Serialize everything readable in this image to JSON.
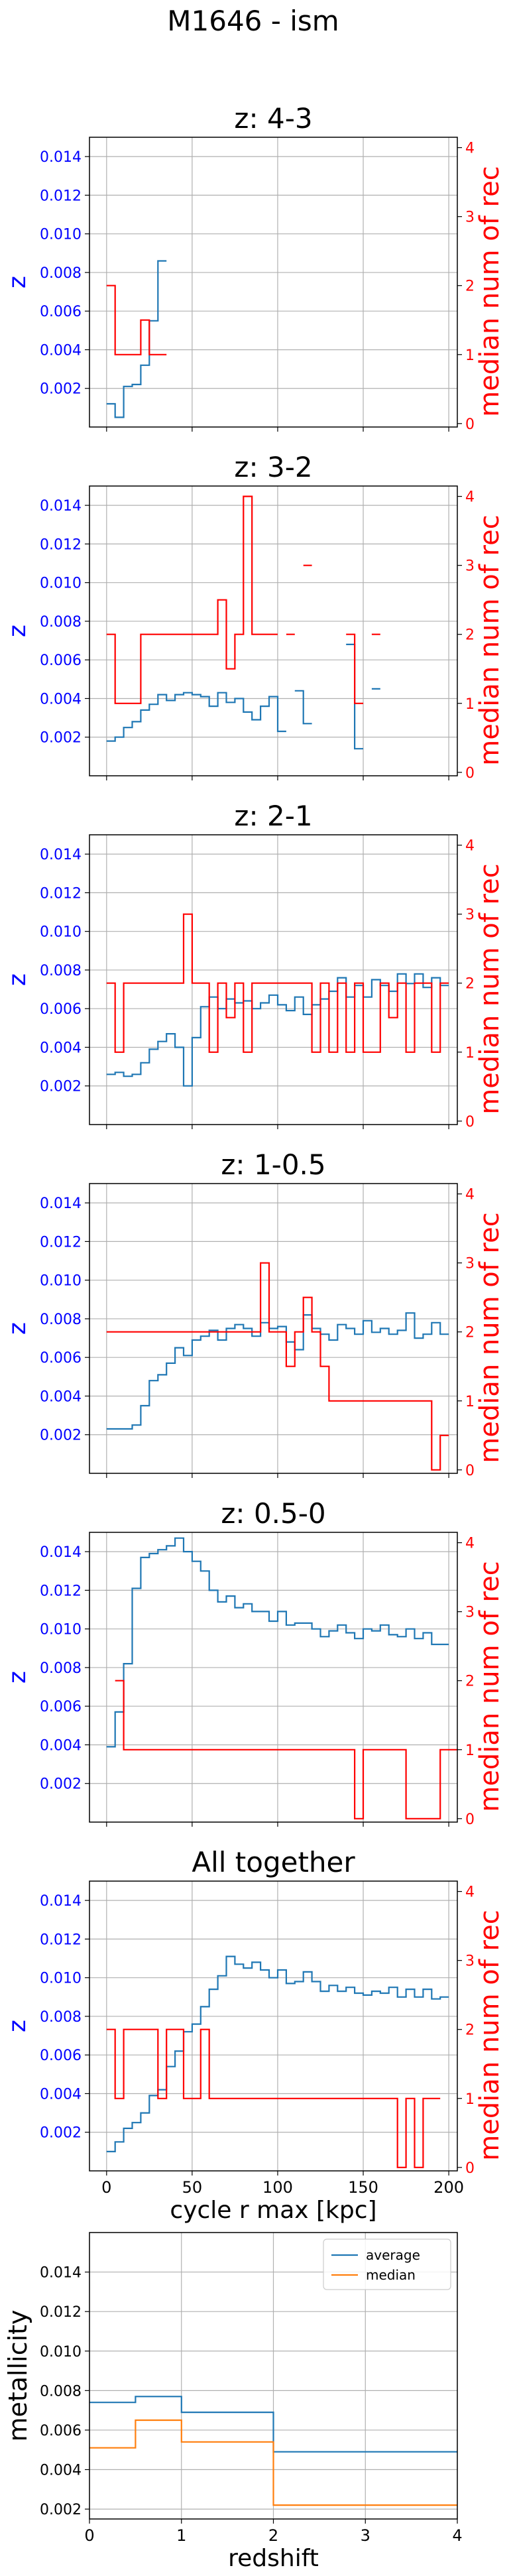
{
  "figure": {
    "title": "M1646 - ism"
  },
  "colors": {
    "z_axis": "#0000ff",
    "rec_axis": "#ff0000",
    "z_line": "#1f77b4",
    "rec_line": "#ff0000",
    "median_line": "#ff7f0e",
    "grid": "#b0b0b0"
  },
  "chart_data": [
    {
      "type": "line",
      "title": "z: 4-3",
      "ylabel": "z",
      "ylabel_right": "median num of rec",
      "xlim": [
        -10,
        205
      ],
      "ylim": [
        0,
        0.015
      ],
      "ylim_right": [
        -0.05,
        4.15
      ],
      "yticks": [
        "0.002",
        "0.004",
        "0.006",
        "0.008",
        "0.010",
        "0.012",
        "0.014"
      ],
      "yticks_right": [
        "0",
        "1",
        "2",
        "3",
        "4"
      ],
      "xticks": [],
      "grid": true,
      "series": [
        {
          "axis": "left",
          "style": "step",
          "x": [
            0,
            5,
            10,
            15,
            20,
            25,
            30
          ],
          "y": [
            0.0012,
            0.0005,
            0.0021,
            0.0022,
            0.0032,
            0.0055,
            0.0086
          ]
        },
        {
          "axis": "right",
          "style": "step",
          "x": [
            0,
            5,
            10,
            15,
            20,
            25,
            30
          ],
          "y": [
            2,
            1,
            1,
            1,
            1.5,
            1,
            1
          ]
        }
      ]
    },
    {
      "type": "line",
      "title": "z: 3-2",
      "ylabel": "z",
      "ylabel_right": "median num of rec",
      "xlim": [
        -10,
        205
      ],
      "ylim": [
        0,
        0.015
      ],
      "ylim_right": [
        -0.05,
        4.15
      ],
      "yticks": [
        "0.002",
        "0.004",
        "0.006",
        "0.008",
        "0.010",
        "0.012",
        "0.014"
      ],
      "yticks_right": [
        "0",
        "1",
        "2",
        "3",
        "4"
      ],
      "xticks": [],
      "grid": true,
      "series": [
        {
          "axis": "left",
          "style": "step",
          "x": [
            0,
            5,
            10,
            15,
            20,
            25,
            30,
            35,
            40,
            45,
            50,
            55,
            60,
            65,
            70,
            75,
            80,
            85,
            90,
            95,
            100,
            105,
            110,
            115,
            120,
            125,
            130,
            135,
            140,
            145,
            150,
            155,
            160,
            165,
            170,
            175,
            180,
            185,
            190,
            195
          ],
          "y": [
            0.0018,
            0.002,
            0.0025,
            0.0028,
            0.0034,
            0.0037,
            0.0042,
            0.0039,
            0.0042,
            0.0043,
            0.0042,
            0.0041,
            0.0036,
            0.0043,
            0.0038,
            0.004,
            0.0033,
            0.0029,
            0.0036,
            0.0041,
            0.0023,
            null,
            0.0044,
            0.0027,
            null,
            null,
            null,
            null,
            0.0068,
            0.0014,
            null,
            0.0045,
            null,
            null,
            null,
            null,
            null,
            null,
            null,
            null
          ]
        },
        {
          "axis": "right",
          "style": "step",
          "x": [
            0,
            5,
            10,
            15,
            20,
            25,
            30,
            35,
            40,
            45,
            50,
            55,
            60,
            65,
            70,
            75,
            80,
            85,
            90,
            95,
            100,
            105,
            110,
            115,
            120,
            125,
            130,
            135,
            140,
            145,
            150,
            155,
            160,
            165,
            170,
            175,
            180,
            185,
            190,
            195
          ],
          "y": [
            2,
            1,
            1,
            1,
            2,
            2,
            2,
            2,
            2,
            2,
            2,
            2,
            2,
            2.5,
            1.5,
            2,
            4,
            2,
            2,
            2,
            null,
            2,
            null,
            3,
            null,
            null,
            null,
            null,
            2,
            1,
            null,
            2,
            null,
            null,
            null,
            null,
            null,
            null,
            null,
            null
          ]
        }
      ]
    },
    {
      "type": "line",
      "title": "z: 2-1",
      "ylabel": "z",
      "ylabel_right": "median num of rec",
      "xlim": [
        -10,
        205
      ],
      "ylim": [
        0,
        0.015
      ],
      "ylim_right": [
        -0.05,
        4.15
      ],
      "yticks": [
        "0.002",
        "0.004",
        "0.006",
        "0.008",
        "0.010",
        "0.012",
        "0.014"
      ],
      "yticks_right": [
        "0",
        "1",
        "2",
        "3",
        "4"
      ],
      "xticks": [],
      "grid": true,
      "series": [
        {
          "axis": "left",
          "style": "step",
          "x": [
            0,
            5,
            10,
            15,
            20,
            25,
            30,
            35,
            40,
            45,
            50,
            55,
            60,
            65,
            70,
            75,
            80,
            85,
            90,
            95,
            100,
            105,
            110,
            115,
            120,
            125,
            130,
            135,
            140,
            145,
            150,
            155,
            160,
            165,
            170,
            175,
            180,
            185,
            190,
            195
          ],
          "y": [
            0.0026,
            0.0027,
            0.0025,
            0.0026,
            0.0032,
            0.0039,
            0.0043,
            0.0047,
            0.004,
            0.002,
            0.0045,
            0.0061,
            0.0066,
            0.006,
            0.0065,
            0.0063,
            0.0064,
            0.006,
            0.0063,
            0.0067,
            0.0062,
            0.0059,
            0.0066,
            0.0057,
            0.0062,
            0.0065,
            0.0069,
            0.0076,
            0.0066,
            0.0072,
            0.0066,
            0.0075,
            0.0072,
            0.0069,
            0.0078,
            0.0073,
            0.0078,
            0.0071,
            0.0076,
            0.0072
          ]
        },
        {
          "axis": "right",
          "style": "step",
          "x": [
            0,
            5,
            10,
            15,
            20,
            25,
            30,
            35,
            40,
            45,
            50,
            55,
            60,
            65,
            70,
            75,
            80,
            85,
            90,
            95,
            100,
            105,
            110,
            115,
            120,
            125,
            130,
            135,
            140,
            145,
            150,
            155,
            160,
            165,
            170,
            175,
            180,
            185,
            190,
            195
          ],
          "y": [
            2,
            1,
            2,
            2,
            2,
            2,
            2,
            2,
            2,
            3,
            2,
            2,
            1,
            2,
            1.5,
            2,
            1,
            2,
            2,
            2,
            2,
            2,
            2,
            2,
            1,
            2,
            1,
            2,
            1,
            2,
            1,
            1,
            2,
            1.5,
            2,
            1,
            2,
            2,
            1,
            2
          ]
        }
      ]
    },
    {
      "type": "line",
      "title": "z: 1-0.5",
      "ylabel": "z",
      "ylabel_right": "median num of rec",
      "xlim": [
        -10,
        205
      ],
      "ylim": [
        0,
        0.015
      ],
      "ylim_right": [
        -0.05,
        4.15
      ],
      "yticks": [
        "0.002",
        "0.004",
        "0.006",
        "0.008",
        "0.010",
        "0.012",
        "0.014"
      ],
      "yticks_right": [
        "0",
        "1",
        "2",
        "3",
        "4"
      ],
      "xticks": [],
      "grid": true,
      "series": [
        {
          "axis": "left",
          "style": "step",
          "x": [
            0,
            5,
            10,
            15,
            20,
            25,
            30,
            35,
            40,
            45,
            50,
            55,
            60,
            65,
            70,
            75,
            80,
            85,
            90,
            95,
            100,
            105,
            110,
            115,
            120,
            125,
            130,
            135,
            140,
            145,
            150,
            155,
            160,
            165,
            170,
            175,
            180,
            185,
            190,
            195
          ],
          "y": [
            0.0023,
            0.0023,
            0.0023,
            0.0025,
            0.0035,
            0.0048,
            0.0051,
            0.0057,
            0.0065,
            0.0061,
            0.0069,
            0.0071,
            0.0074,
            0.0069,
            0.0075,
            0.0077,
            0.0075,
            0.0071,
            0.0078,
            0.0075,
            0.0076,
            0.0068,
            0.0064,
            0.0082,
            0.0075,
            0.0072,
            0.0069,
            0.0077,
            0.0075,
            0.0072,
            0.0079,
            0.0073,
            0.0075,
            0.0072,
            0.0074,
            0.0083,
            0.007,
            0.0072,
            0.0078,
            0.0072
          ]
        },
        {
          "axis": "right",
          "style": "step",
          "x": [
            0,
            85,
            90,
            95,
            100,
            105,
            110,
            115,
            120,
            125,
            130,
            135,
            140,
            145,
            150,
            155,
            160,
            165,
            170,
            175,
            180,
            185,
            190,
            195
          ],
          "y": [
            2,
            2,
            3,
            2,
            2,
            1.5,
            2,
            2.5,
            2,
            1.5,
            1,
            1,
            1,
            1,
            1,
            1,
            1,
            1,
            1,
            1,
            1,
            1,
            0,
            0.5
          ]
        }
      ]
    },
    {
      "type": "line",
      "title": "z: 0.5-0",
      "ylabel": "z",
      "ylabel_right": "median num of rec",
      "xlim": [
        -10,
        205
      ],
      "ylim": [
        0,
        0.015
      ],
      "ylim_right": [
        -0.05,
        4.15
      ],
      "yticks": [
        "0.002",
        "0.004",
        "0.006",
        "0.008",
        "0.010",
        "0.012",
        "0.014"
      ],
      "yticks_right": [
        "0",
        "1",
        "2",
        "3",
        "4"
      ],
      "xticks": [],
      "grid": true,
      "series": [
        {
          "axis": "left",
          "style": "step",
          "x": [
            0,
            5,
            10,
            15,
            20,
            25,
            30,
            35,
            40,
            45,
            50,
            55,
            60,
            65,
            70,
            75,
            80,
            85,
            90,
            95,
            100,
            105,
            110,
            115,
            120,
            125,
            130,
            135,
            140,
            145,
            150,
            155,
            160,
            165,
            170,
            175,
            180,
            185,
            190,
            195
          ],
          "y": [
            0.0039,
            0.0057,
            0.0082,
            0.0121,
            0.0137,
            0.0139,
            0.0141,
            0.0143,
            0.0147,
            0.014,
            0.0135,
            0.013,
            0.012,
            0.0114,
            0.0117,
            0.0111,
            0.0113,
            0.0109,
            0.0109,
            0.0104,
            0.0109,
            0.0102,
            0.0103,
            0.0103,
            0.01,
            0.0096,
            0.0099,
            0.0102,
            0.0098,
            0.0095,
            0.01,
            0.0099,
            0.0102,
            0.0097,
            0.0096,
            0.01,
            0.0095,
            0.0098,
            0.0092,
            0.0092
          ]
        },
        {
          "axis": "right",
          "style": "step",
          "x": [
            5,
            10,
            140,
            145,
            150,
            155,
            160,
            165,
            170,
            175,
            180,
            185,
            190,
            195,
            200
          ],
          "y": [
            2,
            1,
            1,
            0,
            1,
            1,
            1,
            1,
            1,
            0,
            0,
            0,
            0,
            1,
            1
          ]
        }
      ]
    },
    {
      "type": "line",
      "title": "All together",
      "ylabel": "z",
      "ylabel_right": "median num of rec",
      "xlabel": "cycle r max [kpc]",
      "xlim": [
        -10,
        205
      ],
      "ylim": [
        0,
        0.015
      ],
      "ylim_right": [
        -0.05,
        4.15
      ],
      "yticks": [
        "0.002",
        "0.004",
        "0.006",
        "0.008",
        "0.010",
        "0.012",
        "0.014"
      ],
      "yticks_right": [
        "0",
        "1",
        "2",
        "3",
        "4"
      ],
      "xticks": [
        "0",
        "50",
        "100",
        "150",
        "200"
      ],
      "grid": true,
      "series": [
        {
          "axis": "left",
          "style": "step",
          "x": [
            0,
            5,
            10,
            15,
            20,
            25,
            30,
            35,
            40,
            45,
            50,
            55,
            60,
            65,
            70,
            75,
            80,
            85,
            90,
            95,
            100,
            105,
            110,
            115,
            120,
            125,
            130,
            135,
            140,
            145,
            150,
            155,
            160,
            165,
            170,
            175,
            180,
            185,
            190,
            195
          ],
          "y": [
            0.001,
            0.0015,
            0.0022,
            0.0025,
            0.003,
            0.0039,
            0.0042,
            0.0054,
            0.0062,
            0.0072,
            0.0076,
            0.0085,
            0.0094,
            0.0101,
            0.0111,
            0.0107,
            0.0105,
            0.0108,
            0.0104,
            0.01,
            0.0104,
            0.0097,
            0.0098,
            0.0103,
            0.0098,
            0.0093,
            0.0096,
            0.0093,
            0.0095,
            0.0092,
            0.0091,
            0.0093,
            0.0092,
            0.0095,
            0.009,
            0.0094,
            0.009,
            0.0094,
            0.0089,
            0.009
          ]
        },
        {
          "axis": "right",
          "style": "step",
          "x": [
            0,
            5,
            10,
            15,
            20,
            25,
            30,
            35,
            40,
            45,
            50,
            55,
            60,
            140,
            145,
            150,
            155,
            160,
            165,
            170,
            175,
            180,
            185,
            190
          ],
          "y": [
            2,
            1,
            2,
            2,
            2,
            2,
            1,
            2,
            2,
            1,
            1,
            2,
            1,
            1,
            1,
            1,
            1,
            1,
            1,
            0,
            1,
            0,
            1,
            1
          ]
        }
      ]
    },
    {
      "type": "line",
      "title": "",
      "ylabel": "metallicity",
      "xlabel": "redshift",
      "xlim": [
        0,
        4
      ],
      "ylim": [
        0.0015,
        0.016
      ],
      "yticks": [
        "0.002",
        "0.004",
        "0.006",
        "0.008",
        "0.010",
        "0.012",
        "0.014"
      ],
      "xticks": [
        "0",
        "1",
        "2",
        "3",
        "4"
      ],
      "grid": true,
      "legend": {
        "position": "top-right",
        "entries": [
          "average",
          "median"
        ]
      },
      "series": [
        {
          "name": "average",
          "style": "step",
          "x": [
            0,
            0.5,
            1,
            2,
            3
          ],
          "y": [
            0.0074,
            0.0077,
            0.0069,
            0.0049,
            0.0049
          ]
        },
        {
          "name": "median",
          "style": "step",
          "x": [
            0,
            0.5,
            1,
            2,
            3
          ],
          "y": [
            0.0051,
            0.0065,
            0.0054,
            0.0022,
            0.0022
          ]
        }
      ]
    }
  ]
}
